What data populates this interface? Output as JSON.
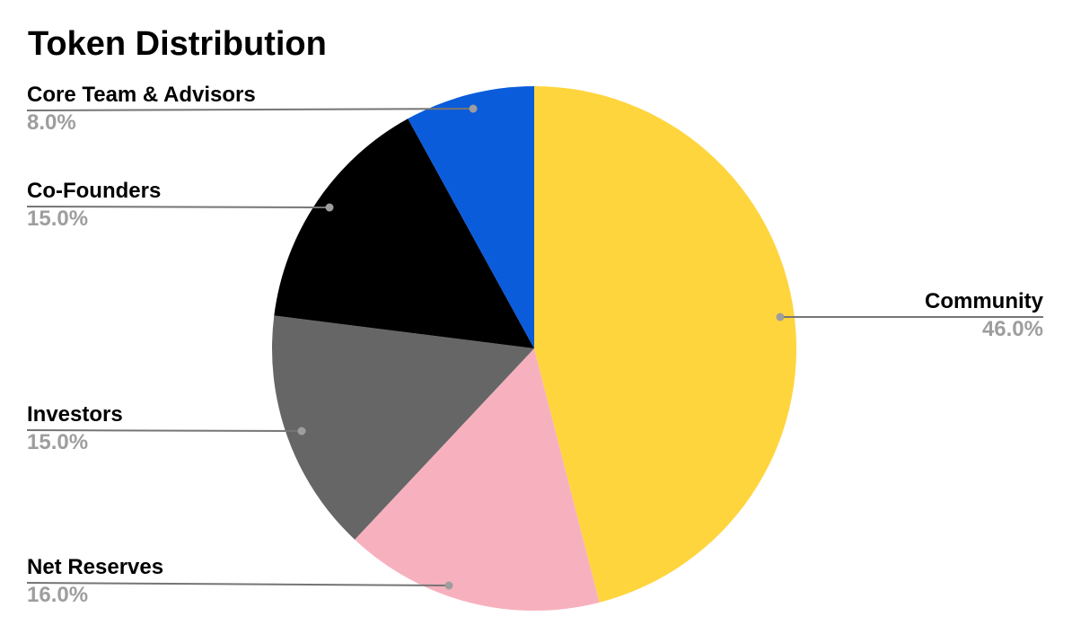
{
  "chart_data": {
    "type": "pie",
    "title": "Token Distribution",
    "start_angle_deg": 0,
    "direction": "clockwise",
    "total": 100,
    "legend": "none",
    "labels_style": "callout-with-leader-lines",
    "slices": [
      {
        "label": "Community",
        "value": 46.0,
        "pct_label": "46.0%",
        "color": "#FFD53D",
        "label_side": "right"
      },
      {
        "label": "Net Reserves",
        "value": 16.0,
        "pct_label": "16.0%",
        "color": "#F7B1BE",
        "label_side": "left"
      },
      {
        "label": "Investors",
        "value": 15.0,
        "pct_label": "15.0%",
        "color": "#666666",
        "label_side": "left"
      },
      {
        "label": "Co-Founders",
        "value": 15.0,
        "pct_label": "15.0%",
        "color": "#000000",
        "label_side": "left"
      },
      {
        "label": "Core Team & Advisors",
        "value": 8.0,
        "pct_label": "8.0%",
        "color": "#0B5CDB",
        "label_side": "left"
      }
    ],
    "colors": {
      "background": "#ffffff",
      "title_text": "#000000",
      "label_text": "#000000",
      "pct_text": "#9E9E9E",
      "leader_line": "#757575",
      "leader_dot": "#9E9E9E"
    }
  }
}
